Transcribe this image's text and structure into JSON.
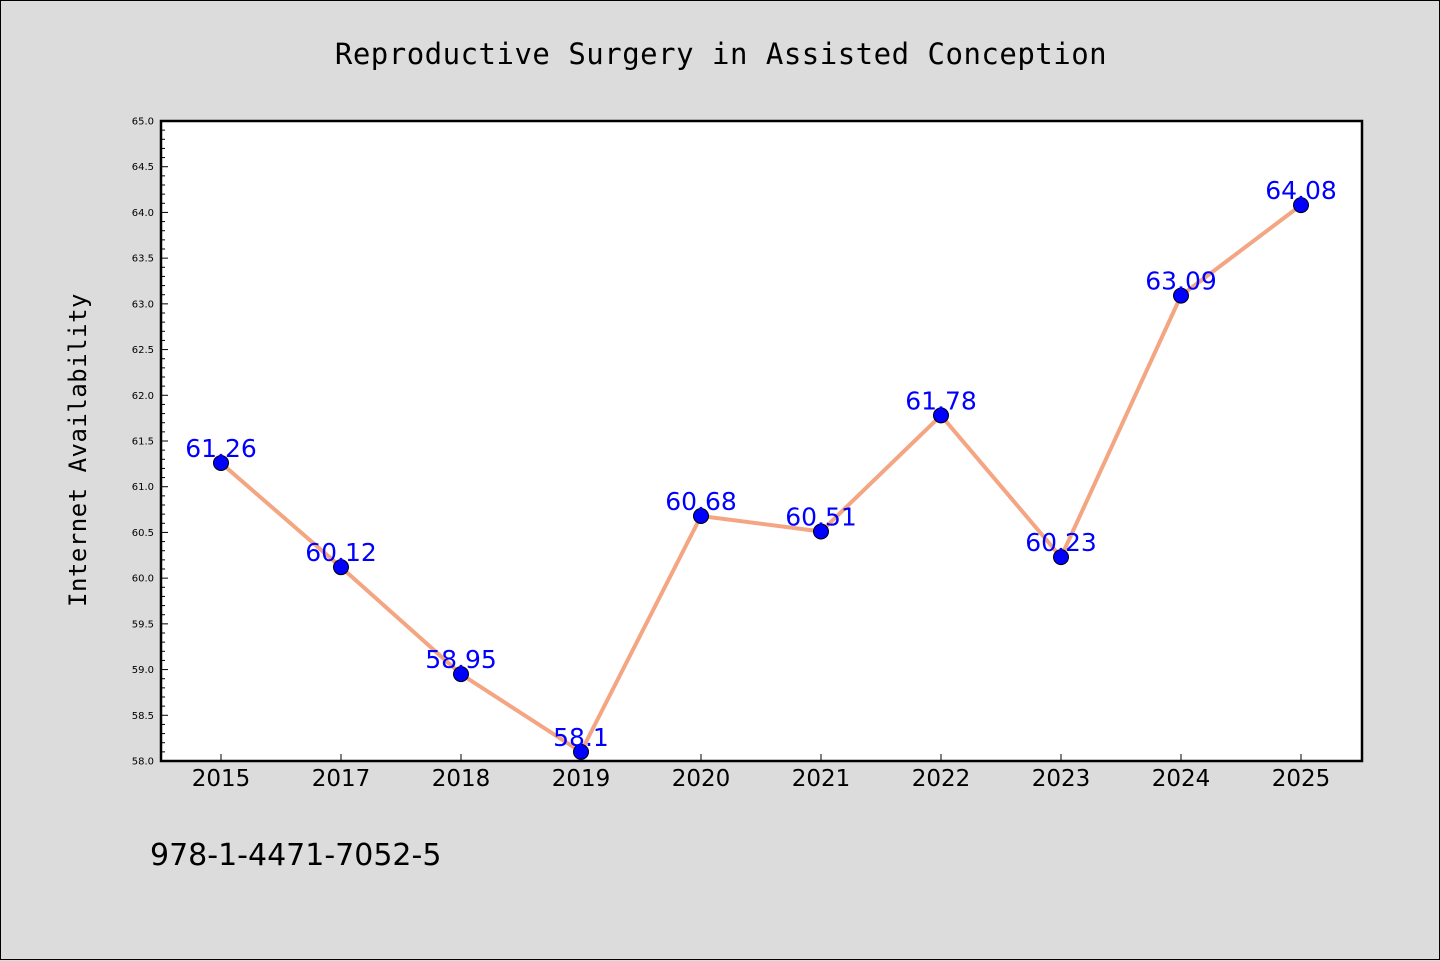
{
  "footnote": "978-1-4471-7052-5",
  "colors": {
    "background": "#dcdcdc",
    "plot_area": "#ffffff",
    "line": "#f4a582",
    "marker": "#0000ff",
    "data_label": "#0000ff"
  },
  "chart_data": {
    "type": "line",
    "title": "Reproductive Surgery in Assisted Conception",
    "xlabel": "",
    "ylabel": "Internet Availability",
    "categories": [
      "2015",
      "2017",
      "2018",
      "2019",
      "2020",
      "2021",
      "2022",
      "2023",
      "2024",
      "2025"
    ],
    "values": [
      61.26,
      60.12,
      58.95,
      58.1,
      60.68,
      60.51,
      61.78,
      60.23,
      63.09,
      64.08
    ],
    "data_labels": [
      "61.26",
      "60.12",
      "58.95",
      "58.1",
      "60.68",
      "60.51",
      "61.78",
      "60.23",
      "63.09",
      "64.08"
    ],
    "ylim": [
      58.0,
      65.0
    ],
    "yticks": [
      "58.0",
      "58.5",
      "59.0",
      "59.5",
      "60.0",
      "60.5",
      "61.0",
      "61.5",
      "62.0",
      "62.5",
      "63.0",
      "63.5",
      "64.0",
      "64.5",
      "65.0"
    ],
    "grid": false,
    "legend": "none"
  }
}
